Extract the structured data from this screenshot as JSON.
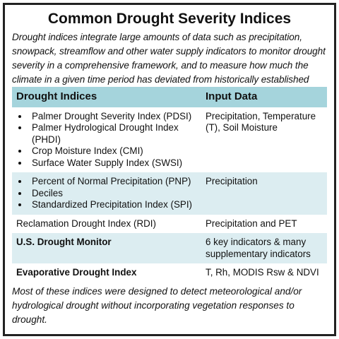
{
  "title": "Common Drought Severity Indices",
  "intro": "Drought indices integrate large amounts of data such as precipitation, snowpack, streamflow and other water supply indicators to monitor drought severity in a comprehensive framework, and to measure how much the climate in a given time period has deviated from historically established normal conditions.",
  "table": {
    "header": [
      "Drought Indices",
      "Input Data"
    ],
    "rows": [
      {
        "indices": [
          "Palmer Drought Severity Index (PDSI)",
          "Palmer Hydrological Drought Index (PHDI)",
          "Crop Moisture Index (CMI)",
          "Surface Water Supply Index (SWSI)"
        ],
        "input": "Precipitation, Temperature (T), Soil Moisture",
        "bold": false
      },
      {
        "indices": [
          "Percent of Normal Precipitation (PNP)",
          "Deciles",
          "Standardized Precipitation Index (SPI)"
        ],
        "input": "Precipitation",
        "bold": false
      },
      {
        "indices": "Reclamation Drought Index (RDI)",
        "input": "Precipitation and PET",
        "bold": false
      },
      {
        "indices": "U.S. Drought Monitor",
        "input": "6 key indicators & many supplementary indicators",
        "bold": true
      },
      {
        "indices": "Evaporative Drought Index",
        "input": "T, Rh, MODIS Rsw & NDVI",
        "bold": true
      }
    ]
  },
  "outro": "Most of these indices were designed to detect meteorological and/or hydrological drought without incorporating vegetation responses to drought."
}
